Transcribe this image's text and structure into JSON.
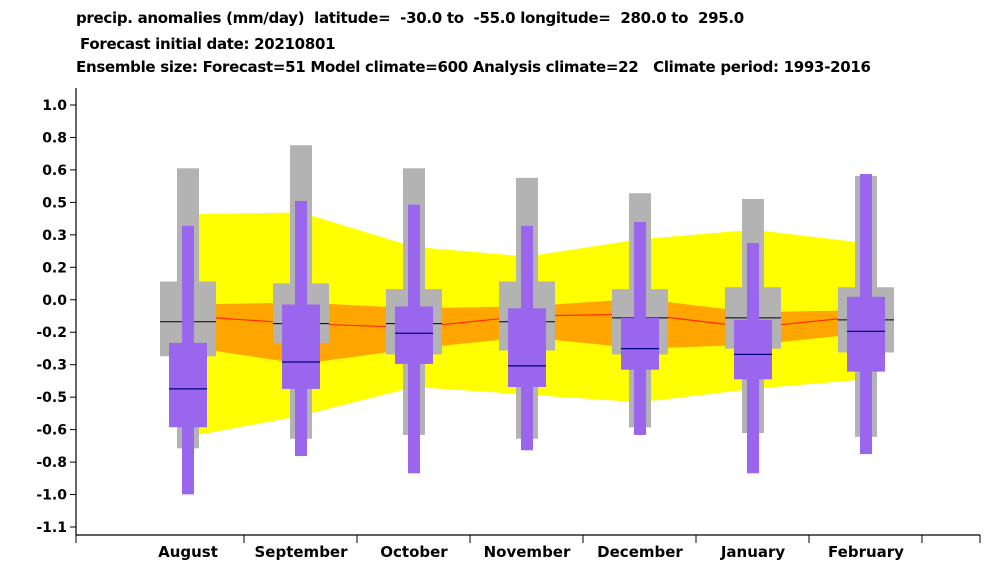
{
  "title": {
    "line1": "precip. anomalies (mm/day)  latitude=  -30.0 to  -55.0 longitude=  280.0 to  295.0",
    "line2": "Forecast initial date: 20210801",
    "line3": "Ensemble size: Forecast=51 Model climate=600 Analysis climate=22   Climate period: 1993-2016"
  },
  "chart_data": {
    "type": "box",
    "categories": [
      "August",
      "September",
      "October",
      "November",
      "December",
      "January",
      "February"
    ],
    "y_tick_labels": [
      "1.0",
      "0.8",
      "0.6",
      "0.5",
      "0.3",
      "0.2",
      "0.0",
      "-0.2",
      "-0.3",
      "-0.5",
      "-0.6",
      "-0.8",
      "-1.0",
      "-1.1"
    ],
    "ylim": [
      -1.1,
      1.1
    ],
    "colors": {
      "yellow_band": "#ffff00",
      "orange_band": "#ffa500",
      "analysis_median_line": "#ff2a00",
      "model_climate_box": "#b3b3b3",
      "forecast_box": "#9a66ee",
      "median_marker": "#000080"
    },
    "analysis_climate_bands": {
      "outer_upper": [
        0.53,
        0.54,
        0.36,
        0.31,
        0.4,
        0.45,
        0.38
      ],
      "outer_lower": [
        -0.63,
        -0.52,
        -0.37,
        -0.41,
        -0.45,
        -0.38,
        -0.33
      ],
      "inner_upper": [
        0.06,
        0.07,
        0.04,
        0.05,
        0.09,
        0.02,
        0.03
      ],
      "inner_lower": [
        -0.16,
        -0.25,
        -0.17,
        -0.11,
        -0.17,
        -0.15,
        -0.09
      ],
      "median": [
        0.0,
        -0.04,
        -0.06,
        0.0,
        0.01,
        -0.06,
        0.0
      ]
    },
    "model_climate": [
      {
        "whisker_low": -0.69,
        "box_low": -0.21,
        "median": -0.03,
        "box_high": 0.18,
        "whisker_high": 0.77
      },
      {
        "whisker_low": -0.64,
        "box_low": -0.14,
        "median": -0.04,
        "box_high": 0.17,
        "whisker_high": 0.89
      },
      {
        "whisker_low": -0.62,
        "box_low": -0.2,
        "median": -0.04,
        "box_high": 0.14,
        "whisker_high": 0.77
      },
      {
        "whisker_low": -0.64,
        "box_low": -0.18,
        "median": -0.03,
        "box_high": 0.18,
        "whisker_high": 0.72
      },
      {
        "whisker_low": -0.58,
        "box_low": -0.2,
        "median": -0.01,
        "box_high": 0.14,
        "whisker_high": 0.64
      },
      {
        "whisker_low": -0.61,
        "box_low": -0.17,
        "median": -0.01,
        "box_high": 0.15,
        "whisker_high": 0.61
      },
      {
        "whisker_low": -0.63,
        "box_low": -0.19,
        "median": -0.02,
        "box_high": 0.15,
        "whisker_high": 0.73
      }
    ],
    "forecast": [
      {
        "whisker_low": -0.93,
        "box_low": -0.58,
        "median": -0.38,
        "box_high": -0.14,
        "whisker_high": 0.47
      },
      {
        "whisker_low": -0.73,
        "box_low": -0.38,
        "median": -0.24,
        "box_high": 0.06,
        "whisker_high": 0.6
      },
      {
        "whisker_low": -0.82,
        "box_low": -0.25,
        "median": -0.09,
        "box_high": 0.05,
        "whisker_high": 0.58
      },
      {
        "whisker_low": -0.7,
        "box_low": -0.37,
        "median": -0.26,
        "box_high": 0.04,
        "whisker_high": 0.47
      },
      {
        "whisker_low": -0.62,
        "box_low": -0.28,
        "median": -0.17,
        "box_high": -0.01,
        "whisker_high": 0.49
      },
      {
        "whisker_low": -0.82,
        "box_low": -0.33,
        "median": -0.2,
        "box_high": -0.02,
        "whisker_high": 0.38
      },
      {
        "whisker_low": -0.72,
        "box_low": -0.29,
        "median": -0.08,
        "box_high": 0.1,
        "whisker_high": 0.74
      }
    ]
  }
}
